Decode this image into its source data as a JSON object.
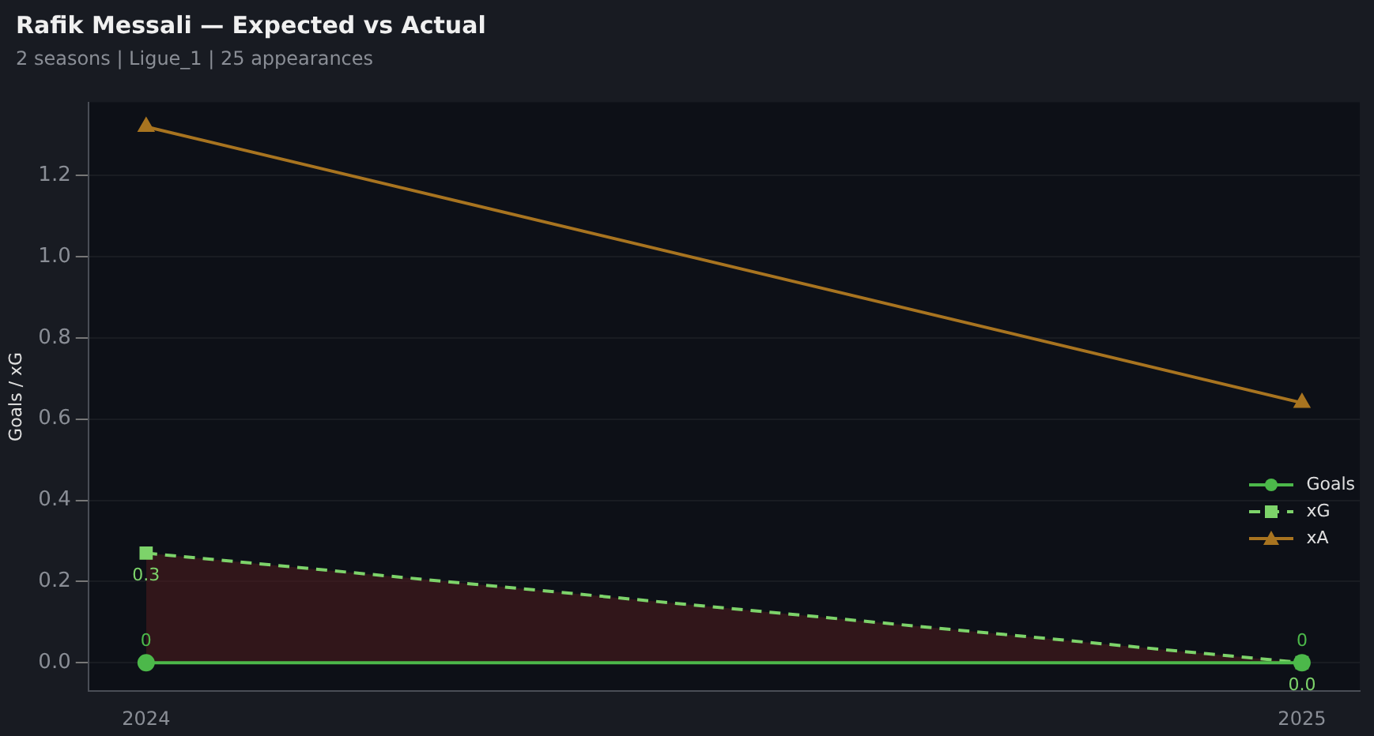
{
  "chart_data": {
    "type": "line",
    "title": "Rafik Messali — Expected vs Actual",
    "subtitle": "2 seasons | Ligue_1 | 25 appearances",
    "ylabel": "Goals / xG",
    "x": [
      2024,
      2025
    ],
    "xlim": [
      2023.95,
      2025.05
    ],
    "xticks": [
      2024,
      2025
    ],
    "ylim": [
      -0.07,
      1.38
    ],
    "yticks": [
      {
        "value": 0,
        "label": "0.0"
      },
      {
        "value": 0.2,
        "label": "0.2"
      },
      {
        "value": 0.4,
        "label": "0.4"
      },
      {
        "value": 0.6,
        "label": "0.6"
      },
      {
        "value": 0.8,
        "label": "0.8"
      },
      {
        "value": 1,
        "label": "1.0"
      },
      {
        "value": 1.2,
        "label": "1.2"
      }
    ],
    "series": [
      {
        "name": "Goals",
        "color": "#4cb84a",
        "values": [
          0,
          0
        ],
        "marker": "circle",
        "line_style": "solid",
        "value_labels": [
          "0",
          "0"
        ]
      },
      {
        "name": "xG",
        "type": "area",
        "color": "#7dd36a",
        "values": [
          0.27,
          0
        ],
        "marker": "square",
        "line_style": "dashed",
        "value_labels": [
          "0.3",
          "0.0"
        ]
      },
      {
        "name": "xA",
        "color": "#a87420",
        "values": [
          1.32,
          0.64
        ],
        "marker": "triangle",
        "line_style": "solid"
      }
    ],
    "grid": "y",
    "legend": "bottom right"
  }
}
